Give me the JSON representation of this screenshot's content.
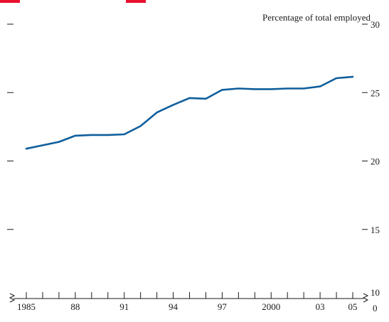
{
  "chart_data": {
    "type": "line",
    "unit_label": "Percentage of total employed",
    "x": [
      1985,
      1986,
      1987,
      1988,
      1989,
      1990,
      1991,
      1992,
      1993,
      1994,
      1995,
      1996,
      1997,
      1998,
      1999,
      2000,
      2001,
      2002,
      2003,
      2004,
      2005
    ],
    "series": [
      {
        "values": [
          20.9,
          21.15,
          21.4,
          21.85,
          21.9,
          21.9,
          21.95,
          22.55,
          23.55,
          24.1,
          24.6,
          24.55,
          25.2,
          25.3,
          25.25,
          25.25,
          25.3,
          25.3,
          25.45,
          26.05,
          26.15
        ]
      }
    ],
    "xlim": [
      1985,
      2005
    ],
    "ylim": [
      10,
      30
    ],
    "y_ticks": [
      {
        "value": 30,
        "label": "30"
      },
      {
        "value": 25,
        "label": "25"
      },
      {
        "value": 20,
        "label": "20"
      },
      {
        "value": 15,
        "label": "15"
      },
      {
        "value": 10,
        "label": "10"
      }
    ],
    "y_zero_label": "0",
    "x_tick_labels": [
      {
        "x": 1985,
        "label": "1985"
      },
      {
        "x": 1988,
        "label": "88"
      },
      {
        "x": 1991,
        "label": "91"
      },
      {
        "x": 1994,
        "label": "94"
      },
      {
        "x": 1997,
        "label": "97"
      },
      {
        "x": 2000,
        "label": "2000"
      },
      {
        "x": 2003,
        "label": "03"
      },
      {
        "x": 2005,
        "label": "05"
      }
    ],
    "axis_break": true,
    "grid": false,
    "colors": {
      "line": "#0f5e9c",
      "accent": "#e8102e",
      "axis": "#1a1a1a"
    }
  }
}
